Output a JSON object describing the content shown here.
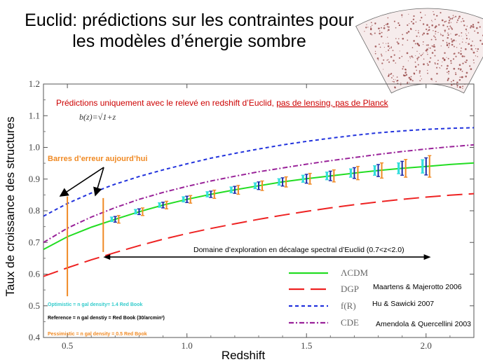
{
  "slide": {
    "title_line1": "Euclid: prédictions sur les contraintes pour",
    "title_line2": "les modèles d’énergie sombre"
  },
  "chart_data": {
    "type": "line",
    "xlabel": "Redshift",
    "ylabel": "Taux de croissance des structures",
    "xlim": [
      0.4,
      2.2
    ],
    "ylim": [
      0.4,
      1.2
    ],
    "x_ticks": [
      0.5,
      1.0,
      1.5,
      2.0
    ],
    "x_tick_labels": [
      "0.5",
      "1.0",
      "1.5",
      "2.0"
    ],
    "y_ticks": [
      0.4,
      0.5,
      0.6,
      0.7,
      0.8,
      0.9,
      1.0,
      1.1,
      1.2
    ],
    "y_tick_labels": [
      "0.4",
      "0.5",
      "0.6",
      "0.7",
      "0.8",
      "0.9",
      "1.0",
      "1.1",
      "1.2"
    ],
    "grid": false,
    "series": [
      {
        "name": "ΛCDM",
        "color": "#22dd22",
        "dash": "solid",
        "x": [
          0.4,
          0.5,
          0.6,
          0.7,
          0.8,
          0.9,
          1.0,
          1.1,
          1.2,
          1.3,
          1.4,
          1.5,
          1.6,
          1.7,
          1.8,
          1.9,
          2.0,
          2.1,
          2.2
        ],
        "y": [
          0.678,
          0.718,
          0.748,
          0.773,
          0.797,
          0.818,
          0.836,
          0.852,
          0.866,
          0.879,
          0.891,
          0.901,
          0.91,
          0.919,
          0.927,
          0.934,
          0.94,
          0.946,
          0.951
        ]
      },
      {
        "name": "DGP",
        "reference": "Maartens & Majerotto 2006",
        "color": "#ee2222",
        "dash": "longdash",
        "x": [
          0.4,
          0.5,
          0.6,
          0.7,
          0.8,
          0.9,
          1.0,
          1.1,
          1.2,
          1.3,
          1.4,
          1.5,
          1.6,
          1.7,
          1.8,
          1.9,
          2.0,
          2.1,
          2.2
        ],
        "y": [
          0.593,
          0.62,
          0.645,
          0.668,
          0.69,
          0.71,
          0.728,
          0.744,
          0.759,
          0.773,
          0.786,
          0.798,
          0.809,
          0.819,
          0.828,
          0.836,
          0.843,
          0.849,
          0.854
        ]
      },
      {
        "name": "f(R)",
        "reference": "Hu & Sawicki 2007",
        "color": "#2233dd",
        "dash": "short",
        "x": [
          0.4,
          0.5,
          0.6,
          0.7,
          0.8,
          0.9,
          1.0,
          1.1,
          1.2,
          1.3,
          1.4,
          1.5,
          1.6,
          1.7,
          1.8,
          1.9,
          2.0,
          2.1,
          2.2
        ],
        "y": [
          0.783,
          0.823,
          0.856,
          0.884,
          0.908,
          0.929,
          0.948,
          0.966,
          0.981,
          0.995,
          1.008,
          1.019,
          1.029,
          1.038,
          1.046,
          1.052,
          1.057,
          1.06,
          1.062
        ]
      },
      {
        "name": "CDE",
        "reference": "Amendola & Quercellini 2003",
        "color": "#992299",
        "dash": "dashdot",
        "x": [
          0.4,
          0.5,
          0.6,
          0.7,
          0.8,
          0.9,
          1.0,
          1.1,
          1.2,
          1.3,
          1.4,
          1.5,
          1.6,
          1.7,
          1.8,
          1.9,
          2.0,
          2.1,
          2.2
        ],
        "y": [
          0.7,
          0.745,
          0.78,
          0.81,
          0.836,
          0.858,
          0.877,
          0.894,
          0.909,
          0.923,
          0.935,
          0.947,
          0.958,
          0.968,
          0.978,
          0.987,
          0.995,
          1.002,
          1.008
        ]
      }
    ],
    "error_bars": {
      "x": [
        0.7,
        0.8,
        0.9,
        1.0,
        1.1,
        1.2,
        1.3,
        1.4,
        1.5,
        1.6,
        1.7,
        1.8,
        1.9,
        2.0
      ],
      "y": [
        0.773,
        0.797,
        0.818,
        0.836,
        0.852,
        0.866,
        0.879,
        0.891,
        0.901,
        0.91,
        0.919,
        0.927,
        0.934,
        0.94
      ],
      "pessimistic": [
        0.012,
        0.012,
        0.012,
        0.012,
        0.013,
        0.014,
        0.015,
        0.016,
        0.017,
        0.019,
        0.021,
        0.024,
        0.028,
        0.034
      ],
      "reference": [
        0.009,
        0.009,
        0.009,
        0.01,
        0.01,
        0.011,
        0.012,
        0.013,
        0.014,
        0.015,
        0.017,
        0.019,
        0.022,
        0.027
      ],
      "optimistic": [
        0.007,
        0.007,
        0.007,
        0.008,
        0.008,
        0.009,
        0.009,
        0.01,
        0.011,
        0.012,
        0.013,
        0.015,
        0.017,
        0.021
      ],
      "colors": {
        "pessimistic": "#f08a24",
        "reference": "#1a2aa8",
        "optimistic": "#33dddd"
      }
    },
    "current_error_bars": {
      "color": "#f08a24",
      "bars": [
        {
          "x": 0.5,
          "y_low": 0.53,
          "y_high": 0.845
        },
        {
          "x": 0.65,
          "y_low": 0.67,
          "y_high": 0.84
        }
      ]
    },
    "annotations": {
      "predictions_prefix": "Prédictions uniquement avec le relevé en redshift d’Euclid, ",
      "predictions_suffix": "pas de lensing, pas de  Planck",
      "bias_formula": "b(z)=√1+z",
      "current_errors_label": "Barres d’erreur aujourd’hui",
      "domain_label": "Domaine d’exploration en décalage spectral d’Euclid (0.7<z<2.0)",
      "domain_range": [
        0.65,
        2.02
      ],
      "domain_y": 0.654
    },
    "scenarios": [
      {
        "label": "Optimistic = n gal density= 1.4 Red Book",
        "color": "#33cccc"
      },
      {
        "label": "Reference = n gal denstiy = Red Book (30/arcmin²)",
        "color": "#000000"
      },
      {
        "label": "Pessimistic = n gal density = 0.5 Red Book",
        "color": "#f08a24"
      }
    ]
  },
  "sky_map": {
    "description_icon": "galaxy-distribution-map"
  }
}
